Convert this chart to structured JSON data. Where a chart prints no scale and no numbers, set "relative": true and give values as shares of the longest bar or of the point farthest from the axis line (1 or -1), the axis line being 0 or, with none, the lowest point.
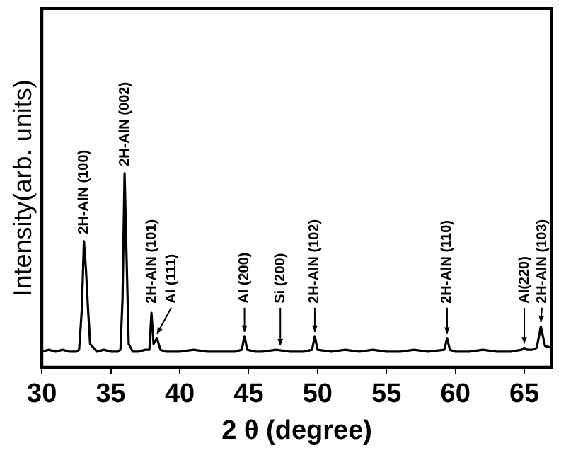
{
  "chart_data": {
    "type": "line",
    "relative": true,
    "xlabel": "2 θ (degree)",
    "ylabel": "Intensity(arb. units)",
    "xlim": [
      30,
      67
    ],
    "xticks": [
      30,
      35,
      40,
      45,
      50,
      55,
      60,
      65
    ],
    "grid": false,
    "legend": false,
    "marker": "none",
    "line_style": "solid",
    "series": [
      {
        "color": "#000000",
        "x": [
          30,
          30.5,
          31,
          31.5,
          32,
          32.5,
          32.7,
          32.9,
          33.05,
          33.2,
          33.35,
          33.5,
          34,
          34.5,
          35,
          35.5,
          35.7,
          35.85,
          36.0,
          36.15,
          36.3,
          36.6,
          37,
          37.5,
          37.8,
          37.95,
          38.1,
          38.35,
          38.6,
          39,
          40,
          41,
          42,
          43,
          44,
          44.5,
          44.7,
          44.9,
          45.5,
          46,
          47,
          48,
          49,
          49.6,
          49.8,
          50.0,
          51,
          52,
          53,
          54,
          55,
          56,
          57,
          58,
          59.2,
          59.4,
          59.6,
          60,
          61,
          62,
          63,
          64,
          64.8,
          65,
          65.2,
          65.6,
          65.9,
          66.2,
          66.5,
          67
        ],
        "values": [
          0.08,
          0.09,
          0.08,
          0.09,
          0.08,
          0.08,
          0.09,
          0.3,
          0.65,
          0.5,
          0.3,
          0.12,
          0.08,
          0.09,
          0.08,
          0.08,
          0.09,
          0.35,
          1,
          0.55,
          0.12,
          0.08,
          0.08,
          0.09,
          0.09,
          0.28,
          0.12,
          0.15,
          0.09,
          0.08,
          0.08,
          0.09,
          0.08,
          0.08,
          0.08,
          0.09,
          0.16,
          0.09,
          0.08,
          0.08,
          0.09,
          0.08,
          0.08,
          0.09,
          0.16,
          0.09,
          0.08,
          0.09,
          0.08,
          0.09,
          0.08,
          0.08,
          0.09,
          0.08,
          0.09,
          0.15,
          0.09,
          0.08,
          0.08,
          0.09,
          0.08,
          0.08,
          0.09,
          0.1,
          0.09,
          0.09,
          0.1,
          0.21,
          0.11,
          0.1
        ]
      }
    ],
    "annotations": [
      {
        "text": "2H-AlN (100)",
        "x": 33.05,
        "y": 0.65
      },
      {
        "text": "2H-AlN (002)",
        "x": 36.0,
        "y": 1
      },
      {
        "text": "2H-AlN (101)",
        "x": 37.95,
        "y": 0.28
      },
      {
        "text": "Al (111)",
        "x": 38.35,
        "y": 0.15
      },
      {
        "text": "Al (200)",
        "x": 44.7,
        "y": 0.16
      },
      {
        "text": "Si (200)",
        "x": 47.3,
        "y": 0.09
      },
      {
        "text": "2H-AlN (102)",
        "x": 49.8,
        "y": 0.16
      },
      {
        "text": "2H-AlN (110)",
        "x": 59.4,
        "y": 0.15
      },
      {
        "text": "Al(220)",
        "x": 65,
        "y": 0.1
      },
      {
        "text": "2H-AlN (103)",
        "x": 66.2,
        "y": 0.21
      }
    ]
  }
}
